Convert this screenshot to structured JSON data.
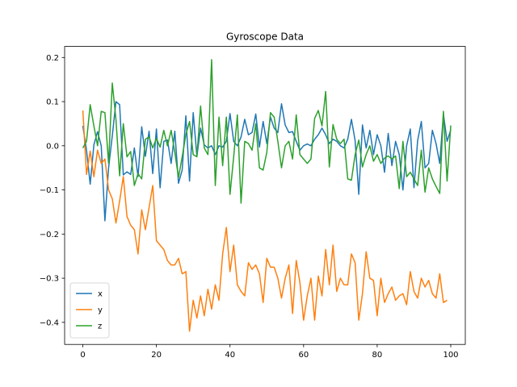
{
  "chart_data": {
    "type": "line",
    "title": "Gyroscope Data",
    "xlabel": "",
    "ylabel": "",
    "xlim": [
      -4.95,
      103.95
    ],
    "ylim": [
      -0.45,
      0.225
    ],
    "xticks": [
      0,
      20,
      40,
      60,
      80,
      100
    ],
    "yticks": [
      -0.4,
      -0.3,
      -0.2,
      -0.1,
      0.0,
      0.1,
      0.2
    ],
    "ytick_labels": [
      "−0.4",
      "−0.3",
      "−0.2",
      "−0.1",
      "0.0",
      "0.1",
      "0.2"
    ],
    "xtick_labels": [
      "0",
      "20",
      "40",
      "60",
      "80",
      "100"
    ],
    "grid": false,
    "legend": {
      "placement": "lower-left"
    },
    "series": [
      {
        "name": "x",
        "color": "#1f77b4",
        "values": [
          0.045,
          -0.01,
          -0.087,
          0.002,
          0.032,
          0.0,
          -0.17,
          -0.05,
          0.022,
          0.1,
          0.093,
          -0.066,
          -0.059,
          -0.065,
          -0.005,
          -0.07,
          0.043,
          -0.024,
          0.033,
          -0.063,
          0.038,
          -0.095,
          0.01,
          0.013,
          -0.04,
          0.033,
          -0.085,
          -0.055,
          0.068,
          -0.08,
          0.075,
          -0.024,
          0.04,
          0.002,
          -0.005,
          0.0,
          -0.02,
          0.0,
          -0.003,
          0.01,
          0.073,
          0.01,
          0.0,
          0.02,
          0.06,
          0.025,
          0.03,
          0.072,
          -0.003,
          0.055,
          0.005,
          0.065,
          0.04,
          0.03,
          0.095,
          0.047,
          0.03,
          0.032,
          0.01,
          -0.01,
          0.0,
          0.004,
          0.0,
          0.015,
          0.025,
          0.04,
          0.025,
          0.005,
          0.015,
          0.01,
          0.0,
          -0.005,
          0.015,
          0.06,
          0.012,
          -0.11,
          0.047,
          -0.005,
          0.035,
          -0.02,
          0.025,
          0.0,
          -0.06,
          0.028,
          -0.045,
          0.01,
          -0.02,
          -0.1,
          0.0,
          0.038,
          -0.095,
          0.012,
          0.055,
          -0.05,
          -0.04,
          0.035,
          0.005,
          -0.04,
          0.072,
          0.01,
          0.036
        ]
      },
      {
        "name": "y",
        "color": "#ff7f0e",
        "values": [
          0.08,
          -0.065,
          -0.012,
          -0.07,
          -0.01,
          -0.04,
          -0.03,
          -0.1,
          -0.12,
          -0.175,
          -0.125,
          -0.07,
          -0.16,
          -0.18,
          -0.19,
          -0.245,
          -0.145,
          -0.19,
          -0.14,
          -0.09,
          -0.215,
          -0.225,
          -0.235,
          -0.26,
          -0.27,
          -0.27,
          -0.255,
          -0.29,
          -0.285,
          -0.42,
          -0.35,
          -0.39,
          -0.34,
          -0.385,
          -0.325,
          -0.37,
          -0.315,
          -0.35,
          -0.245,
          -0.185,
          -0.285,
          -0.225,
          -0.315,
          -0.33,
          -0.34,
          -0.265,
          -0.28,
          -0.27,
          -0.29,
          -0.355,
          -0.255,
          -0.275,
          -0.275,
          -0.3,
          -0.345,
          -0.3,
          -0.27,
          -0.38,
          -0.26,
          -0.31,
          -0.395,
          -0.34,
          -0.3,
          -0.395,
          -0.295,
          -0.34,
          -0.235,
          -0.315,
          -0.225,
          -0.33,
          -0.3,
          -0.315,
          -0.315,
          -0.245,
          -0.265,
          -0.395,
          -0.335,
          -0.24,
          -0.3,
          -0.305,
          -0.385,
          -0.3,
          -0.355,
          -0.335,
          -0.32,
          -0.35,
          -0.34,
          -0.335,
          -0.36,
          -0.285,
          -0.33,
          -0.345,
          -0.3,
          -0.32,
          -0.305,
          -0.335,
          -0.345,
          -0.29,
          -0.355,
          -0.35
        ]
      },
      {
        "name": "z",
        "color": "#2ca02c",
        "values": [
          -0.005,
          0.01,
          0.093,
          0.045,
          0.0,
          0.078,
          0.075,
          -0.04,
          0.142,
          0.06,
          -0.068,
          0.05,
          -0.025,
          -0.013,
          -0.09,
          -0.063,
          -0.075,
          0.015,
          0.02,
          -0.005,
          0.017,
          -0.003,
          0.035,
          0.0,
          0.035,
          -0.015,
          -0.072,
          -0.025,
          0.025,
          0.055,
          -0.02,
          -0.025,
          0.09,
          -0.005,
          -0.02,
          0.195,
          -0.09,
          0.065,
          -0.045,
          0.065,
          -0.11,
          -0.025,
          0.07,
          -0.13,
          0.01,
          0.005,
          -0.01,
          0.05,
          -0.05,
          -0.055,
          -0.015,
          0.075,
          0.065,
          0.01,
          -0.05,
          0.0,
          0.01,
          -0.03,
          0.07,
          -0.02,
          -0.03,
          -0.04,
          -0.03,
          0.062,
          0.08,
          0.045,
          0.123,
          -0.048,
          0.048,
          0.015,
          0.005,
          0.015,
          -0.075,
          -0.078,
          -0.02,
          0.013,
          -0.048,
          -0.02,
          0.0,
          -0.035,
          -0.02,
          -0.04,
          -0.028,
          -0.023,
          -0.03,
          -0.023,
          -0.097,
          0.01,
          -0.07,
          -0.06,
          -0.075,
          -0.09,
          -0.01,
          -0.105,
          -0.05,
          -0.075,
          -0.092,
          -0.108,
          0.078,
          -0.08,
          0.046
        ]
      }
    ]
  }
}
